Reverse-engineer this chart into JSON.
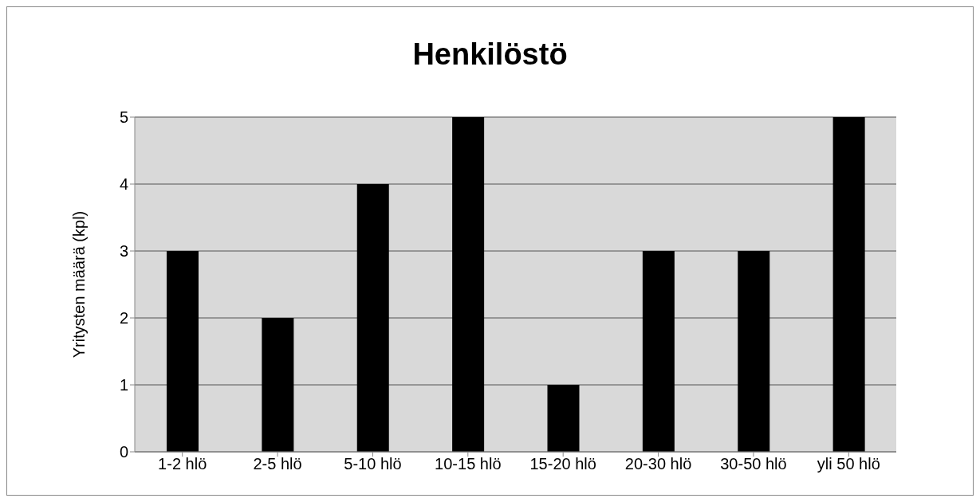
{
  "chart_data": {
    "type": "bar",
    "title": "Henkilöstö",
    "ylabel": "Yritysten määrä (kpl)",
    "categories": [
      "1-2 hlö",
      "2-5 hlö",
      "5-10 hlö",
      "10-15 hlö",
      "15-20 hlö",
      "20-30 hlö",
      "30-50 hlö",
      "yli 50 hlö"
    ],
    "values": [
      3,
      2,
      4,
      5,
      1,
      3,
      3,
      5
    ],
    "color": "#000000",
    "ylim": [
      0,
      5
    ],
    "yticks": [
      0,
      1,
      2,
      3,
      4,
      5
    ],
    "grid": "y"
  }
}
